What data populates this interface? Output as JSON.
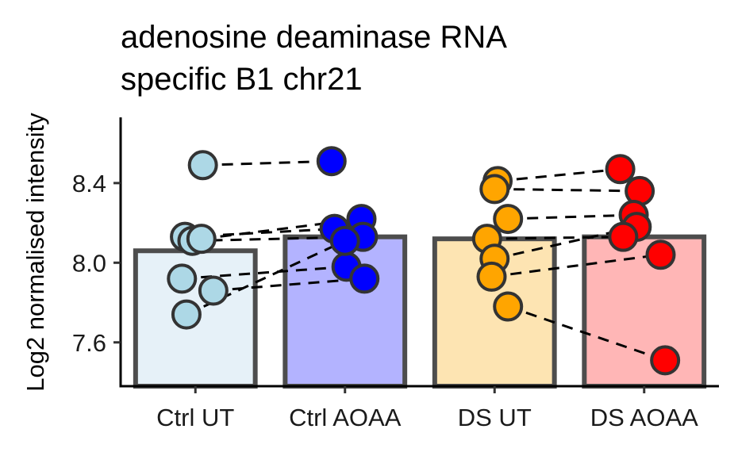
{
  "chart_data": {
    "type": "bar",
    "title_lines": [
      "adenosine deaminase RNA",
      "specific B1 chr21"
    ],
    "xlabel": "",
    "ylabel": "Log2 normalised intensity",
    "ylim": [
      7.38,
      8.73
    ],
    "yticks": [
      7.6,
      8.0,
      8.4
    ],
    "grid": false,
    "legend": "none",
    "categories": [
      "Ctrl UT",
      "Ctrl AOAA",
      "DS UT",
      "DS AOAA"
    ],
    "bar_values": [
      8.06,
      8.13,
      8.12,
      8.13
    ],
    "bar_colors": [
      "#e6f1f8",
      "#b3b3ff",
      "#fde4b2",
      "#ffb6b6"
    ],
    "point_colors": [
      "#add8e6",
      "#0000ff",
      "#ffa500",
      "#ff0000"
    ],
    "points": [
      [
        8.49,
        8.13,
        8.11,
        8.12,
        7.92,
        7.86,
        7.74
      ],
      [
        8.51,
        8.22,
        8.17,
        8.13,
        7.98,
        7.92,
        8.11
      ],
      [
        8.41,
        8.37,
        8.22,
        8.12,
        8.02,
        7.93,
        7.78
      ],
      [
        8.47,
        8.36,
        8.24,
        8.18,
        8.13,
        8.04,
        7.51
      ]
    ],
    "pairs": [
      {
        "from": 0,
        "to": 1,
        "links": [
          [
            0,
            0
          ],
          [
            1,
            2
          ],
          [
            2,
            3
          ],
          [
            3,
            1
          ],
          [
            4,
            4
          ],
          [
            5,
            5
          ],
          [
            6,
            6
          ]
        ]
      },
      {
        "from": 2,
        "to": 3,
        "links": [
          [
            0,
            0
          ],
          [
            1,
            1
          ],
          [
            2,
            2
          ],
          [
            3,
            4
          ],
          [
            4,
            3
          ],
          [
            5,
            5
          ],
          [
            6,
            6
          ]
        ]
      }
    ]
  }
}
